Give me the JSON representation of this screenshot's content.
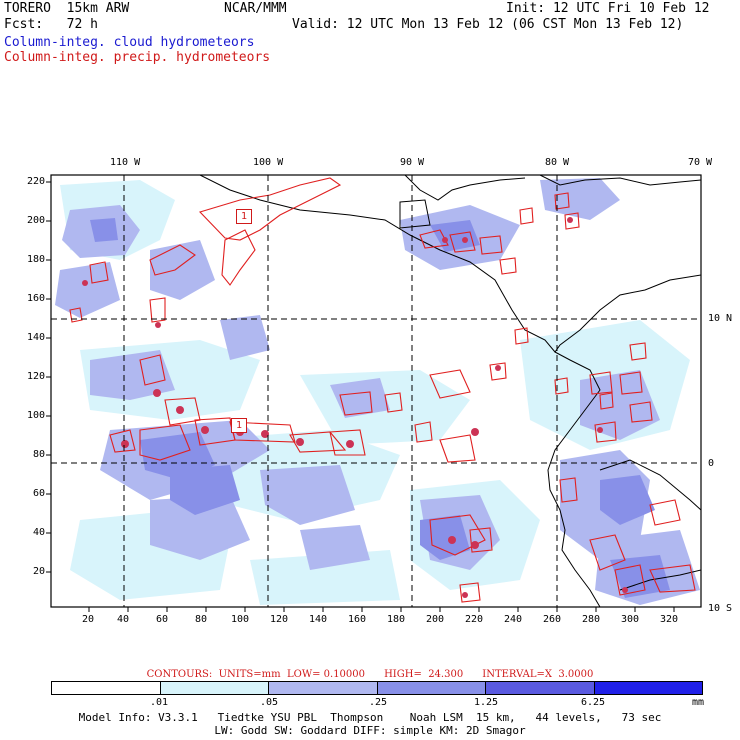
{
  "header": {
    "model_line": "TORERO  15km ARW",
    "org": "NCAR/MMM",
    "init": "Init: 12 UTC Fri 10 Feb 12",
    "fcst": "Fcst:   72 h",
    "valid": "Valid: 12 UTC Mon 13 Feb 12 (06 CST Mon 13 Feb 12)",
    "field_cloud": "Column-integ. cloud hydrometeors",
    "field_precip": "Column-integ. precip. hydrometeors"
  },
  "map": {
    "lon_labels": [
      "110 W",
      "100 W",
      "90 W",
      "80 W",
      "70 W"
    ],
    "lat_labels": [
      "10 N",
      "0",
      "10 S"
    ],
    "y_ticks": [
      "220",
      "200",
      "180",
      "160",
      "140",
      "120",
      "100",
      "80",
      "60",
      "40",
      "20"
    ],
    "x_ticks": [
      "20",
      "40",
      "60",
      "80",
      "100",
      "120",
      "140",
      "160",
      "180",
      "200",
      "220",
      "240",
      "260",
      "280",
      "300",
      "320"
    ],
    "low_labels": [
      "1",
      "1"
    ],
    "colors": {
      "land_bg": "#ffffff",
      "cloud_light": "#d8f4fb",
      "cloud_mid": "#b0b8f0",
      "cloud_dark": "#8890e8",
      "cloud_darker": "#5a5ae0",
      "precip_contour": "#e02020",
      "coast": "#000000"
    }
  },
  "contours_text": "CONTOURS:  UNITS=mm  LOW= 0.10000      HIGH=  24.300      INTERVAL=X  3.0000",
  "legend": {
    "labels": [
      ".01",
      ".05",
      ".25",
      "1.25",
      "6.25"
    ],
    "units": "mm",
    "colors": [
      "#ffffff",
      "#d8f4fb",
      "#b0b8f0",
      "#8890e8",
      "#5a5ae0",
      "#2020e8"
    ]
  },
  "model_info": {
    "line1": "Model Info: V3.3.1   Tiedtke YSU PBL  Thompson    Noah LSM  15 km,   44 levels,   73 sec",
    "line2": "LW: Godd SW: Goddard DIFF: simple KM: 2D Smagor"
  }
}
